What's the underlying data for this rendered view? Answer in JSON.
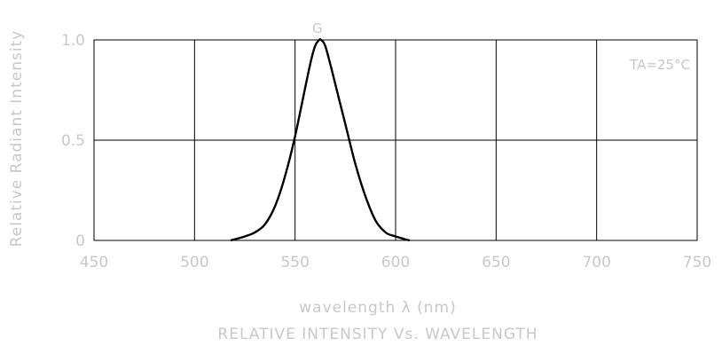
{
  "chart_data": {
    "type": "line",
    "title": "RELATIVE INTENSITY Vs. WAVELENGTH",
    "xlabel": "wavelength λ  (nm)",
    "ylabel": "Relative Radiant Intensity",
    "xlim": [
      450,
      750
    ],
    "ylim": [
      0,
      1.0
    ],
    "x_ticks": [
      450,
      500,
      550,
      600,
      650,
      700,
      750
    ],
    "x_tick_labels": [
      "450",
      "500",
      "550",
      "600",
      "650",
      "700",
      "750"
    ],
    "y_ticks": [
      0,
      0.5,
      1.0
    ],
    "y_tick_labels": [
      "0",
      "0.5",
      "1.0"
    ],
    "grid": true,
    "annotations": [
      {
        "text": "TA=25°C",
        "position": "top-right"
      }
    ],
    "series": [
      {
        "name": "G",
        "color": "#000000",
        "x": [
          518,
          525,
          530,
          535,
          540,
          545,
          550,
          555,
          558,
          560,
          562,
          563,
          565,
          568,
          572,
          576,
          580,
          585,
          590,
          595,
          600,
          605,
          607
        ],
        "y": [
          0.0,
          0.02,
          0.04,
          0.08,
          0.17,
          0.32,
          0.52,
          0.76,
          0.9,
          0.97,
          1.0,
          1.0,
          0.97,
          0.86,
          0.7,
          0.54,
          0.38,
          0.22,
          0.1,
          0.04,
          0.02,
          0.005,
          0.0
        ]
      }
    ]
  }
}
